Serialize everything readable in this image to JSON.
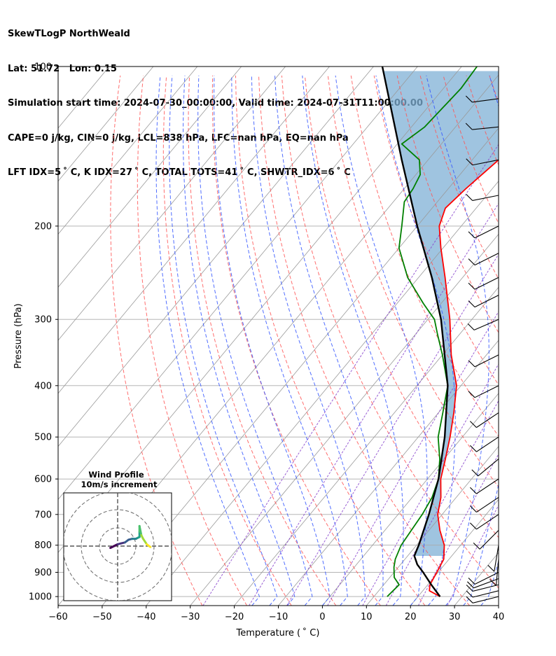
{
  "header": {
    "line1": "SkewTLogP NorthWeald",
    "line2": "Lat: 51.72   Lon: 0.15",
    "line3": "Simulation start time: 2024-07-30_00:00:00, Valid time: 2024-07-31T11:00:00.00",
    "line4": "CAPE=0 j/kg, CIN=0 j/kg, LCL=838 hPa, LFC=nan hPa, EQ=nan hPa",
    "line5": "LFT IDX=5 ˚ C, K IDX=27 ˚ C, TOTAL TOTS=41 ˚ C, SHWTR_IDX=6 ˚ C"
  },
  "axes": {
    "xlabel": "Temperature ( ˚ C)",
    "ylabel": "Pressure (hPa)"
  },
  "hodograph": {
    "title": "Wind Profile",
    "subtitle": "10m/s increment"
  },
  "colors": {
    "temperature": "#ff0000",
    "dewpoint": "#008000",
    "parcel": "#000000",
    "cape_fill": "#7fb0d6",
    "dry_adiabat": "#ff5555",
    "moist_adiabat": "#3355ff",
    "mixing_ratio": "#8844cc",
    "isotherm": "#9a9a9a"
  },
  "chart_data": [
    {
      "type": "line",
      "subtype": "skew-T log-p",
      "xlim": [
        -60,
        40
      ],
      "ylim": [
        1040,
        100
      ],
      "yscale": "log",
      "grid": true,
      "xticks": [
        -60,
        -50,
        -40,
        -30,
        -20,
        -10,
        0,
        10,
        20,
        30,
        40
      ],
      "yticks": [
        1000,
        900,
        800,
        700,
        600,
        500,
        400,
        300,
        200,
        100
      ],
      "series": [
        {
          "key": "temperature",
          "points": [
            [
              1000,
              25
            ],
            [
              975,
              21.5
            ],
            [
              950,
              20.5
            ],
            [
              900,
              19.7
            ],
            [
              850,
              18.8
            ],
            [
              800,
              16.3
            ],
            [
              750,
              12.5
            ],
            [
              700,
              9
            ],
            [
              650,
              6.5
            ],
            [
              600,
              3
            ],
            [
              550,
              0.3
            ],
            [
              500,
              -2.8
            ],
            [
              450,
              -6.5
            ],
            [
              400,
              -11
            ],
            [
              350,
              -18
            ],
            [
              300,
              -25
            ],
            [
              250,
              -34
            ],
            [
              220,
              -40.5
            ],
            [
              200,
              -45
            ],
            [
              185,
              -47
            ],
            [
              170,
              -46
            ],
            [
              150,
              -44
            ],
            [
              140,
              -42
            ],
            [
              120,
              -40
            ],
            [
              100,
              -41
            ]
          ]
        },
        {
          "key": "dewpoint",
          "points": [
            [
              1000,
              13
            ],
            [
              950,
              13.5
            ],
            [
              920,
              11
            ],
            [
              880,
              9
            ],
            [
              850,
              7.8
            ],
            [
              800,
              6.5
            ],
            [
              750,
              6
            ],
            [
              700,
              5.5
            ],
            [
              650,
              4.5
            ],
            [
              600,
              2.5
            ],
            [
              550,
              -1
            ],
            [
              500,
              -5.5
            ],
            [
              450,
              -9
            ],
            [
              400,
              -13
            ],
            [
              350,
              -20
            ],
            [
              320,
              -25
            ],
            [
              300,
              -28.5
            ],
            [
              280,
              -34
            ],
            [
              250,
              -42.5
            ],
            [
              220,
              -50
            ],
            [
              200,
              -53.5
            ],
            [
              180,
              -57.5
            ],
            [
              170,
              -58
            ],
            [
              160,
              -59
            ],
            [
              150,
              -62
            ],
            [
              140,
              -69
            ],
            [
              130,
              -67
            ],
            [
              110,
              -66
            ],
            [
              100,
              -66.5
            ]
          ]
        },
        {
          "key": "parcel",
          "points": [
            [
              1000,
              25
            ],
            [
              950,
              20.8
            ],
            [
              900,
              16.6
            ],
            [
              870,
              13.8
            ],
            [
              838,
              11.5
            ],
            [
              800,
              10.5
            ],
            [
              700,
              7
            ],
            [
              600,
              2.5
            ],
            [
              500,
              -4
            ],
            [
              400,
              -13
            ],
            [
              300,
              -27
            ],
            [
              250,
              -37
            ],
            [
              200,
              -50
            ],
            [
              150,
              -66
            ],
            [
              100,
              -88
            ]
          ]
        }
      ],
      "wind_barbs": [
        {
          "p": 1000,
          "u": 4,
          "v": 1
        },
        {
          "p": 975,
          "u": 4,
          "v": 1
        },
        {
          "p": 950,
          "u": 4,
          "v": 1
        },
        {
          "p": 925,
          "u": 4,
          "v": 1.5
        },
        {
          "p": 900,
          "u": 4,
          "v": 2
        },
        {
          "p": 850,
          "u": 0.3,
          "v": 3.2
        },
        {
          "p": 800,
          "u": 0.5,
          "v": 3
        },
        {
          "p": 750,
          "u": 2.5,
          "v": 2.5
        },
        {
          "p": 700,
          "u": 3,
          "v": 2
        },
        {
          "p": 650,
          "u": 3,
          "v": 2
        },
        {
          "p": 600,
          "u": 3,
          "v": 2
        },
        {
          "p": 550,
          "u": 3,
          "v": 2.5
        },
        {
          "p": 500,
          "u": 3,
          "v": 2
        },
        {
          "p": 450,
          "u": 3,
          "v": 2
        },
        {
          "p": 400,
          "u": 3,
          "v": 1.5
        },
        {
          "p": 350,
          "u": 3,
          "v": 1.5
        },
        {
          "p": 300,
          "u": 3,
          "v": 1.3
        },
        {
          "p": 270,
          "u": 3,
          "v": 1.5
        },
        {
          "p": 250,
          "u": 3,
          "v": 1.5
        },
        {
          "p": 225,
          "u": 3,
          "v": 1.5
        },
        {
          "p": 200,
          "u": 3,
          "v": 1.5
        },
        {
          "p": 175,
          "u": 3,
          "v": 0.6
        },
        {
          "p": 150,
          "u": 3,
          "v": 0.6
        },
        {
          "p": 130,
          "u": 3,
          "v": 0.3
        },
        {
          "p": 115,
          "u": 3,
          "v": 0.4
        }
      ]
    },
    {
      "type": "line",
      "subtype": "hodograph",
      "ring_step_ms": 10,
      "series": [
        {
          "key": "hodograph",
          "points": [
            [
              -4,
              -1
            ],
            [
              -2,
              0
            ],
            [
              0,
              1
            ],
            [
              2,
              1.5
            ],
            [
              4,
              2
            ],
            [
              6,
              3.5
            ],
            [
              8,
              4
            ],
            [
              10,
              4
            ],
            [
              11,
              4.5
            ],
            [
              12,
              5
            ],
            [
              12,
              8
            ],
            [
              12,
              11
            ],
            [
              13,
              6
            ],
            [
              14,
              4
            ],
            [
              16,
              1
            ],
            [
              18,
              -0.5
            ]
          ]
        }
      ]
    }
  ]
}
